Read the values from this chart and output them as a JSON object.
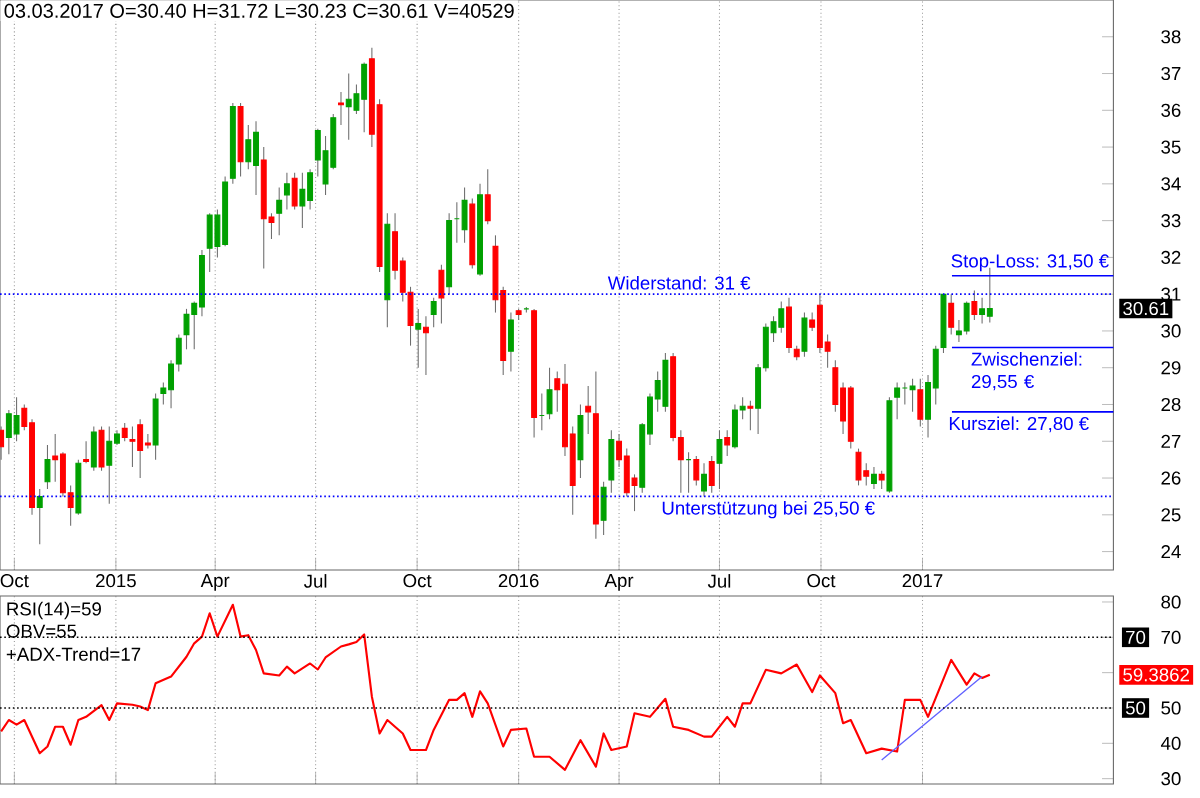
{
  "chart_data": [
    {
      "type": "candlestick",
      "title": "03.03.2017 O=30.40 H=31.72 L=30.23 C=30.61 V=40529",
      "x": [
        "2014-09-19",
        "2014-09-26",
        "2014-10-03",
        "2014-10-10",
        "2014-10-17",
        "2014-10-24",
        "2014-10-31",
        "2014-11-07",
        "2014-11-14",
        "2014-11-21",
        "2014-11-28",
        "2014-12-05",
        "2014-12-12",
        "2014-12-19",
        "2014-12-26",
        "2015-01-02",
        "2015-01-09",
        "2015-01-16",
        "2015-01-23",
        "2015-01-30",
        "2015-02-06",
        "2015-02-13",
        "2015-02-20",
        "2015-02-27",
        "2015-03-06",
        "2015-03-13",
        "2015-03-20",
        "2015-03-27",
        "2015-04-03",
        "2015-04-10",
        "2015-04-17",
        "2015-04-24",
        "2015-05-01",
        "2015-05-08",
        "2015-05-15",
        "2015-05-22",
        "2015-05-29",
        "2015-06-05",
        "2015-06-12",
        "2015-06-19",
        "2015-06-26",
        "2015-07-03",
        "2015-07-10",
        "2015-07-17",
        "2015-07-24",
        "2015-07-31",
        "2015-08-07",
        "2015-08-14",
        "2015-08-21",
        "2015-08-28",
        "2015-09-04",
        "2015-09-11",
        "2015-09-18",
        "2015-09-25",
        "2015-10-02",
        "2015-10-09",
        "2015-10-16",
        "2015-10-23",
        "2015-10-30",
        "2015-11-06",
        "2015-11-13",
        "2015-11-20",
        "2015-11-27",
        "2015-12-04",
        "2015-12-11",
        "2015-12-18",
        "2015-12-25",
        "2016-01-01",
        "2016-01-08",
        "2016-01-15",
        "2016-01-22",
        "2016-01-29",
        "2016-02-05",
        "2016-02-12",
        "2016-02-19",
        "2016-02-26",
        "2016-03-04",
        "2016-03-11",
        "2016-03-18",
        "2016-03-25",
        "2016-04-01",
        "2016-04-08",
        "2016-04-15",
        "2016-04-22",
        "2016-04-29",
        "2016-05-06",
        "2016-05-13",
        "2016-05-20",
        "2016-05-27",
        "2016-06-03",
        "2016-06-10",
        "2016-06-17",
        "2016-06-24",
        "2016-07-01",
        "2016-07-08",
        "2016-07-15",
        "2016-07-22",
        "2016-07-29",
        "2016-08-05",
        "2016-08-12",
        "2016-08-19",
        "2016-08-26",
        "2016-09-02",
        "2016-09-09",
        "2016-09-16",
        "2016-09-23",
        "2016-09-30",
        "2016-10-07",
        "2016-10-14",
        "2016-10-21",
        "2016-10-28",
        "2016-11-04",
        "2016-11-11",
        "2016-11-18",
        "2016-11-25",
        "2016-12-02",
        "2016-12-09",
        "2016-12-16",
        "2016-12-23",
        "2016-12-30",
        "2017-01-06",
        "2017-01-13",
        "2017-01-20",
        "2017-01-27",
        "2017-02-03",
        "2017-02-10",
        "2017-02-17",
        "2017-02-24",
        "2017-03-03"
      ],
      "ohlc": [
        [
          27.3,
          27.4,
          26.5,
          26.85
        ],
        [
          27.1,
          27.85,
          26.65,
          27.75
        ],
        [
          27.2,
          28.2,
          27.0,
          27.7
        ],
        [
          27.9,
          28.0,
          27.3,
          27.4
        ],
        [
          27.5,
          27.6,
          25.0,
          25.2
        ],
        [
          25.2,
          25.7,
          24.2,
          25.5
        ],
        [
          25.9,
          26.9,
          25.7,
          26.5
        ],
        [
          26.6,
          27.2,
          25.9,
          26.5
        ],
        [
          26.65,
          26.7,
          25.5,
          25.6
        ],
        [
          25.6,
          25.8,
          24.7,
          25.2
        ],
        [
          25.05,
          26.5,
          25.0,
          26.4
        ],
        [
          26.5,
          27.0,
          26.4,
          26.45
        ],
        [
          26.3,
          27.4,
          26.2,
          27.25
        ],
        [
          27.3,
          27.4,
          26.2,
          26.3
        ],
        [
          26.35,
          27.4,
          25.3,
          27.0
        ],
        [
          26.95,
          27.3,
          26.9,
          27.2
        ],
        [
          27.35,
          27.5,
          27.0,
          27.1
        ],
        [
          27.05,
          27.4,
          26.3,
          27.0
        ],
        [
          27.45,
          27.6,
          26.0,
          26.75
        ],
        [
          26.95,
          27.2,
          26.8,
          26.9
        ],
        [
          26.9,
          28.3,
          26.5,
          28.15
        ],
        [
          28.3,
          28.6,
          28.0,
          28.45
        ],
        [
          28.4,
          29.2,
          27.9,
          29.1
        ],
        [
          29.1,
          29.9,
          28.9,
          29.8
        ],
        [
          29.9,
          30.6,
          29.5,
          30.45
        ],
        [
          30.45,
          30.8,
          29.5,
          30.75
        ],
        [
          30.65,
          32.2,
          30.4,
          32.05
        ],
        [
          32.25,
          33.2,
          31.6,
          33.15
        ],
        [
          32.3,
          33.3,
          32.0,
          33.15
        ],
        [
          32.35,
          34.2,
          32.3,
          34.05
        ],
        [
          34.15,
          36.2,
          34.0,
          36.1
        ],
        [
          36.1,
          36.2,
          34.2,
          34.6
        ],
        [
          34.6,
          35.6,
          34.4,
          35.2
        ],
        [
          34.5,
          35.7,
          33.7,
          35.4
        ],
        [
          34.65,
          35.0,
          31.7,
          33.05
        ],
        [
          33.1,
          33.2,
          32.5,
          32.95
        ],
        [
          33.2,
          33.9,
          32.6,
          33.55
        ],
        [
          33.7,
          34.3,
          33.3,
          34.0
        ],
        [
          34.15,
          34.3,
          33.3,
          33.4
        ],
        [
          33.4,
          34.3,
          32.8,
          33.85
        ],
        [
          33.55,
          34.4,
          33.3,
          34.3
        ],
        [
          34.65,
          35.5,
          34.2,
          35.45
        ],
        [
          34.0,
          35.3,
          33.7,
          34.9
        ],
        [
          34.45,
          35.9,
          34.4,
          35.8
        ],
        [
          36.2,
          36.5,
          35.6,
          36.15
        ],
        [
          36.1,
          37.0,
          35.2,
          36.3
        ],
        [
          36.0,
          36.7,
          35.9,
          36.45
        ],
        [
          36.3,
          37.3,
          35.4,
          37.25
        ],
        [
          37.4,
          37.7,
          35.0,
          35.35
        ],
        [
          36.15,
          36.3,
          31.6,
          31.75
        ],
        [
          30.85,
          33.2,
          30.1,
          32.9
        ],
        [
          32.7,
          33.2,
          31.4,
          31.65
        ],
        [
          31.9,
          32.0,
          30.8,
          31.05
        ],
        [
          31.05,
          31.2,
          29.6,
          30.15
        ],
        [
          30.05,
          30.6,
          29.0,
          30.2
        ],
        [
          30.1,
          30.4,
          28.8,
          29.95
        ],
        [
          30.45,
          30.9,
          30.1,
          30.8
        ],
        [
          31.65,
          31.8,
          30.2,
          30.9
        ],
        [
          31.2,
          33.2,
          31.0,
          33.0
        ],
        [
          33.05,
          33.5,
          32.4,
          33.05
        ],
        [
          32.75,
          33.9,
          32.4,
          33.55
        ],
        [
          33.45,
          33.6,
          31.7,
          31.8
        ],
        [
          31.55,
          34.0,
          31.5,
          33.7
        ],
        [
          33.7,
          34.4,
          32.9,
          33.0
        ],
        [
          32.3,
          32.6,
          30.5,
          30.85
        ],
        [
          31.1,
          31.2,
          28.8,
          29.2
        ],
        [
          29.45,
          30.5,
          28.9,
          30.3
        ],
        [
          30.55,
          30.6,
          30.3,
          30.45
        ],
        [
          30.6,
          30.65,
          30.5,
          30.6
        ],
        [
          30.55,
          30.6,
          27.1,
          27.65
        ],
        [
          27.7,
          28.3,
          27.3,
          27.7
        ],
        [
          27.75,
          29.0,
          27.6,
          28.4
        ],
        [
          28.7,
          28.9,
          27.8,
          28.4
        ],
        [
          28.55,
          29.1,
          26.6,
          26.85
        ],
        [
          27.2,
          27.4,
          25.0,
          25.8
        ],
        [
          26.5,
          28.0,
          26.0,
          27.7
        ],
        [
          27.95,
          28.5,
          27.2,
          27.8
        ],
        [
          27.75,
          28.9,
          24.35,
          24.75
        ],
        [
          24.85,
          25.9,
          24.45,
          25.75
        ],
        [
          25.95,
          27.3,
          25.6,
          27.05
        ],
        [
          27.0,
          27.2,
          26.3,
          26.5
        ],
        [
          26.6,
          26.8,
          25.5,
          25.6
        ],
        [
          26.0,
          26.1,
          25.1,
          25.8
        ],
        [
          25.75,
          27.5,
          25.6,
          27.45
        ],
        [
          27.2,
          28.3,
          26.9,
          28.2
        ],
        [
          28.15,
          28.9,
          27.8,
          28.65
        ],
        [
          27.95,
          29.4,
          27.8,
          29.2
        ],
        [
          29.3,
          29.4,
          27.0,
          27.1
        ],
        [
          27.1,
          27.3,
          25.6,
          26.5
        ],
        [
          26.5,
          26.7,
          25.6,
          26.5
        ],
        [
          26.5,
          26.6,
          25.8,
          25.95
        ],
        [
          25.65,
          26.4,
          25.5,
          26.1
        ],
        [
          26.45,
          26.6,
          25.6,
          25.8
        ],
        [
          26.4,
          27.3,
          25.7,
          27.05
        ],
        [
          27.1,
          27.3,
          26.6,
          26.9
        ],
        [
          26.85,
          28.0,
          26.8,
          27.85
        ],
        [
          27.85,
          28.2,
          27.6,
          27.95
        ],
        [
          27.95,
          28.1,
          27.3,
          27.9
        ],
        [
          27.9,
          29.1,
          27.2,
          29.0
        ],
        [
          29.0,
          30.2,
          28.9,
          30.1
        ],
        [
          29.95,
          30.4,
          29.7,
          30.25
        ],
        [
          30.1,
          30.8,
          29.95,
          30.6
        ],
        [
          30.65,
          30.9,
          29.4,
          29.55
        ],
        [
          29.5,
          29.6,
          29.2,
          29.3
        ],
        [
          29.45,
          30.5,
          29.3,
          30.35
        ],
        [
          30.3,
          30.5,
          30.0,
          30.1
        ],
        [
          30.7,
          31.0,
          29.4,
          29.55
        ],
        [
          29.7,
          29.9,
          29.0,
          29.45
        ],
        [
          29.0,
          29.2,
          27.8,
          28.0
        ],
        [
          28.45,
          28.6,
          27.2,
          27.55
        ],
        [
          28.45,
          28.5,
          26.8,
          27.0
        ],
        [
          26.7,
          26.8,
          25.8,
          25.95
        ],
        [
          26.2,
          26.4,
          25.8,
          26.05
        ],
        [
          25.85,
          26.3,
          25.7,
          26.1
        ],
        [
          26.1,
          26.2,
          25.7,
          25.95
        ],
        [
          25.65,
          28.2,
          25.6,
          28.1
        ],
        [
          28.2,
          28.6,
          27.6,
          28.45
        ],
        [
          28.45,
          28.6,
          28.0,
          28.45
        ],
        [
          28.4,
          28.7,
          27.8,
          28.5
        ],
        [
          28.4,
          28.7,
          27.4,
          27.6
        ],
        [
          27.6,
          28.8,
          27.1,
          28.6
        ],
        [
          28.45,
          29.6,
          28.0,
          29.5
        ],
        [
          29.55,
          31.0,
          29.4,
          31.0
        ],
        [
          30.75,
          31.0,
          29.9,
          30.1
        ],
        [
          29.9,
          30.3,
          29.7,
          30.0
        ],
        [
          30.0,
          30.8,
          29.9,
          30.75
        ],
        [
          30.8,
          31.1,
          30.3,
          30.45
        ],
        [
          30.45,
          30.9,
          30.2,
          30.6
        ],
        [
          30.4,
          31.72,
          30.23,
          30.61
        ]
      ],
      "colors": [
        "#ff0000",
        "#00a000",
        "#00a000",
        "#ff0000",
        "#ff0000",
        "#00a000",
        "#00a000",
        "#ff0000",
        "#ff0000",
        "#ff0000",
        "#00a000",
        "#ff0000",
        "#00a000",
        "#ff0000",
        "#00a000",
        "#00a000",
        "#ff0000",
        "#ff0000",
        "#ff0000",
        "#ff0000",
        "#00a000",
        "#00a000",
        "#00a000",
        "#00a000",
        "#00a000",
        "#00a000",
        "#00a000",
        "#00a000",
        "#00a000",
        "#00a000",
        "#00a000",
        "#ff0000",
        "#00a000",
        "#00a000",
        "#ff0000",
        "#ff0000",
        "#00a000",
        "#00a000",
        "#ff0000",
        "#00a000",
        "#00a000",
        "#00a000",
        "#00a000",
        "#00a000",
        "#ff0000",
        "#00a000",
        "#00a000",
        "#00a000",
        "#ff0000",
        "#ff0000",
        "#00a000",
        "#ff0000",
        "#ff0000",
        "#ff0000",
        "#00a000",
        "#ff0000",
        "#00a000",
        "#ff0000",
        "#00a000",
        "#00a000",
        "#00a000",
        "#ff0000",
        "#00a000",
        "#ff0000",
        "#ff0000",
        "#ff0000",
        "#00a000",
        "#ff0000",
        "#00a000",
        "#ff0000",
        "#00a000",
        "#00a000",
        "#ff0000",
        "#ff0000",
        "#ff0000",
        "#00a000",
        "#ff0000",
        "#ff0000",
        "#00a000",
        "#00a000",
        "#ff0000",
        "#ff0000",
        "#ff0000",
        "#00a000",
        "#00a000",
        "#00a000",
        "#00a000",
        "#ff0000",
        "#ff0000",
        "#00a000",
        "#ff0000",
        "#00a000",
        "#ff0000",
        "#00a000",
        "#ff0000",
        "#00a000",
        "#00a000",
        "#ff0000",
        "#00a000",
        "#00a000",
        "#00a000",
        "#00a000",
        "#ff0000",
        "#ff0000",
        "#00a000",
        "#ff0000",
        "#ff0000",
        "#ff0000",
        "#ff0000",
        "#ff0000",
        "#ff0000",
        "#ff0000",
        "#ff0000",
        "#00a000",
        "#ff0000",
        "#00a000",
        "#00a000",
        "#00a000",
        "#00a000",
        "#ff0000",
        "#00a000",
        "#00a000",
        "#00a000",
        "#ff0000",
        "#00a000",
        "#00a000",
        "#ff0000",
        "#00a000",
        "#00a000"
      ],
      "xlim": [
        "2014-09-18",
        "2017-06-23"
      ],
      "xticks": [
        {
          "value": "2014-10-01",
          "label": "Oct"
        },
        {
          "value": "2015-01-01",
          "label": "2015"
        },
        {
          "value": "2015-04-01",
          "label": "Apr"
        },
        {
          "value": "2015-07-01",
          "label": "Jul"
        },
        {
          "value": "2015-10-01",
          "label": "Oct"
        },
        {
          "value": "2016-01-01",
          "label": "2016"
        },
        {
          "value": "2016-04-01",
          "label": "Apr"
        },
        {
          "value": "2016-07-01",
          "label": "Jul"
        },
        {
          "value": "2016-10-01",
          "label": "Oct"
        },
        {
          "value": "2017-01-01",
          "label": "2017"
        }
      ],
      "ylim": [
        23.5,
        39
      ],
      "yticks": [
        24,
        25,
        26,
        27,
        28,
        29,
        30,
        31,
        32,
        33,
        34,
        35,
        36,
        37,
        38
      ],
      "grid": "x",
      "ref_lines": [
        {
          "axis": "y",
          "value": 31,
          "label": "Widerstand: 31 €",
          "color": "#0000ff",
          "line_style": "dotted"
        },
        {
          "axis": "y",
          "value": 25.5,
          "label": "Unterstützung bei 25,50 €",
          "color": "#0000ff",
          "line_style": "dotted"
        },
        {
          "axis": "y",
          "value": 31.5,
          "label": "Stop-Loss: 31,50 €",
          "color": "#0000ff",
          "line_style": "solid"
        },
        {
          "axis": "y",
          "value": 29.55,
          "label": "Zwischenziel: 29,55 €",
          "color": "#0000ff",
          "line_style": "solid"
        },
        {
          "axis": "y",
          "value": 27.8,
          "label": "Kursziel: 27,80 €",
          "color": "#0000ff",
          "line_style": "solid"
        }
      ],
      "annotations": [
        "30.61"
      ]
    },
    {
      "type": "line",
      "x": [
        "2014-09-19",
        "2014-09-26",
        "2014-10-03",
        "2014-10-10",
        "2014-10-24",
        "2014-10-31",
        "2014-11-07",
        "2014-11-14",
        "2014-11-21",
        "2014-11-28",
        "2014-12-05",
        "2014-12-19",
        "2014-12-26",
        "2015-01-02",
        "2015-01-16",
        "2015-01-23",
        "2015-01-30",
        "2015-02-06",
        "2015-02-20",
        "2015-03-06",
        "2015-03-13",
        "2015-03-20",
        "2015-03-27",
        "2015-04-03",
        "2015-04-17",
        "2015-04-24",
        "2015-05-01",
        "2015-05-08",
        "2015-05-15",
        "2015-05-29",
        "2015-06-05",
        "2015-06-12",
        "2015-06-26",
        "2015-07-03",
        "2015-07-10",
        "2015-07-24",
        "2015-07-31",
        "2015-08-07",
        "2015-08-14",
        "2015-08-21",
        "2015-08-28",
        "2015-09-04",
        "2015-09-18",
        "2015-09-25",
        "2015-10-09",
        "2015-10-16",
        "2015-10-30",
        "2015-11-06",
        "2015-11-13",
        "2015-11-20",
        "2015-11-27",
        "2015-12-04",
        "2015-12-18",
        "2015-12-25",
        "2016-01-08",
        "2016-01-15",
        "2016-01-29",
        "2016-02-12",
        "2016-02-26",
        "2016-03-11",
        "2016-03-18",
        "2016-03-25",
        "2016-04-08",
        "2016-04-15",
        "2016-04-29",
        "2016-05-13",
        "2016-05-20",
        "2016-06-03",
        "2016-06-17",
        "2016-06-24",
        "2016-07-08",
        "2016-07-15",
        "2016-07-22",
        "2016-07-29",
        "2016-08-12",
        "2016-08-26",
        "2016-09-09",
        "2016-09-23",
        "2016-09-30",
        "2016-10-14",
        "2016-10-21",
        "2016-10-28",
        "2016-11-11",
        "2016-11-25",
        "2016-12-09",
        "2016-12-16",
        "2016-12-30",
        "2017-01-06",
        "2017-01-27",
        "2017-02-10",
        "2017-02-17",
        "2017-02-24",
        "2017-03-03"
      ],
      "series": [
        {
          "color": "#ff0000",
          "values": [
            43.4,
            46.6,
            45.3,
            46.6,
            37.2,
            39.1,
            44.7,
            44.7,
            39.6,
            46.6,
            47.5,
            50.8,
            46.6,
            51.3,
            50.9,
            50.4,
            49.4,
            57.0,
            58.9,
            64.5,
            68.3,
            70.2,
            76.8,
            70.2,
            79.2,
            70.2,
            70.6,
            66.4,
            59.8,
            59.2,
            61.7,
            59.8,
            62.6,
            60.9,
            64.3,
            67.4,
            68.0,
            68.7,
            70.8,
            53.2,
            42.8,
            46.6,
            42.8,
            38.1,
            38.1,
            43.8,
            52.3,
            52.3,
            54.2,
            47.5,
            54.7,
            51.3,
            39.1,
            43.8,
            44.2,
            36.2,
            36.2,
            32.5,
            40.9,
            33.4,
            42.8,
            38.1,
            39.1,
            48.5,
            47.5,
            52.6,
            44.7,
            43.8,
            41.9,
            41.9,
            47.5,
            44.7,
            51.3,
            51.3,
            60.8,
            59.8,
            62.3,
            54.5,
            59.2,
            54.2,
            45.7,
            46.6,
            37.2,
            38.5,
            37.7,
            52.3,
            52.3,
            47.5,
            63.6,
            56.6,
            59.8,
            58.5,
            59.3862
          ]
        },
        {
          "type": "line",
          "color": "#6060ff",
          "x": [
            "2016-11-25",
            "2017-02-24"
          ],
          "values": [
            35.3,
            58.9
          ]
        }
      ],
      "xlim": [
        "2014-09-18",
        "2017-06-23"
      ],
      "xticks": [
        {
          "value": "2014-10-01",
          "label": null
        },
        {
          "value": "2015-01-01",
          "label": null
        },
        {
          "value": "2015-04-01",
          "label": null
        },
        {
          "value": "2015-07-01",
          "label": null
        },
        {
          "value": "2015-10-01",
          "label": null
        },
        {
          "value": "2016-01-01",
          "label": null
        },
        {
          "value": "2016-04-01",
          "label": null
        },
        {
          "value": "2016-07-01",
          "label": null
        },
        {
          "value": "2016-10-01",
          "label": null
        },
        {
          "value": "2017-01-01",
          "label": null
        }
      ],
      "tick_labels": "y",
      "ylim": [
        28.5,
        81.7
      ],
      "yticks": [
        30,
        40,
        50,
        {
          "value": 60,
          "label": null
        },
        70,
        80
      ],
      "grid": "x",
      "ref_lines": [
        {
          "axis": "y",
          "value": 70,
          "label": "70",
          "color": "#000000",
          "line_style": "dotted"
        },
        {
          "axis": "y",
          "value": 50,
          "label": "50",
          "color": "#000000",
          "line_style": "dotted"
        }
      ],
      "annotations": [
        "RSI(14)=59",
        "OBV=55",
        "+ADX-Trend=17",
        "59.3862"
      ]
    }
  ]
}
